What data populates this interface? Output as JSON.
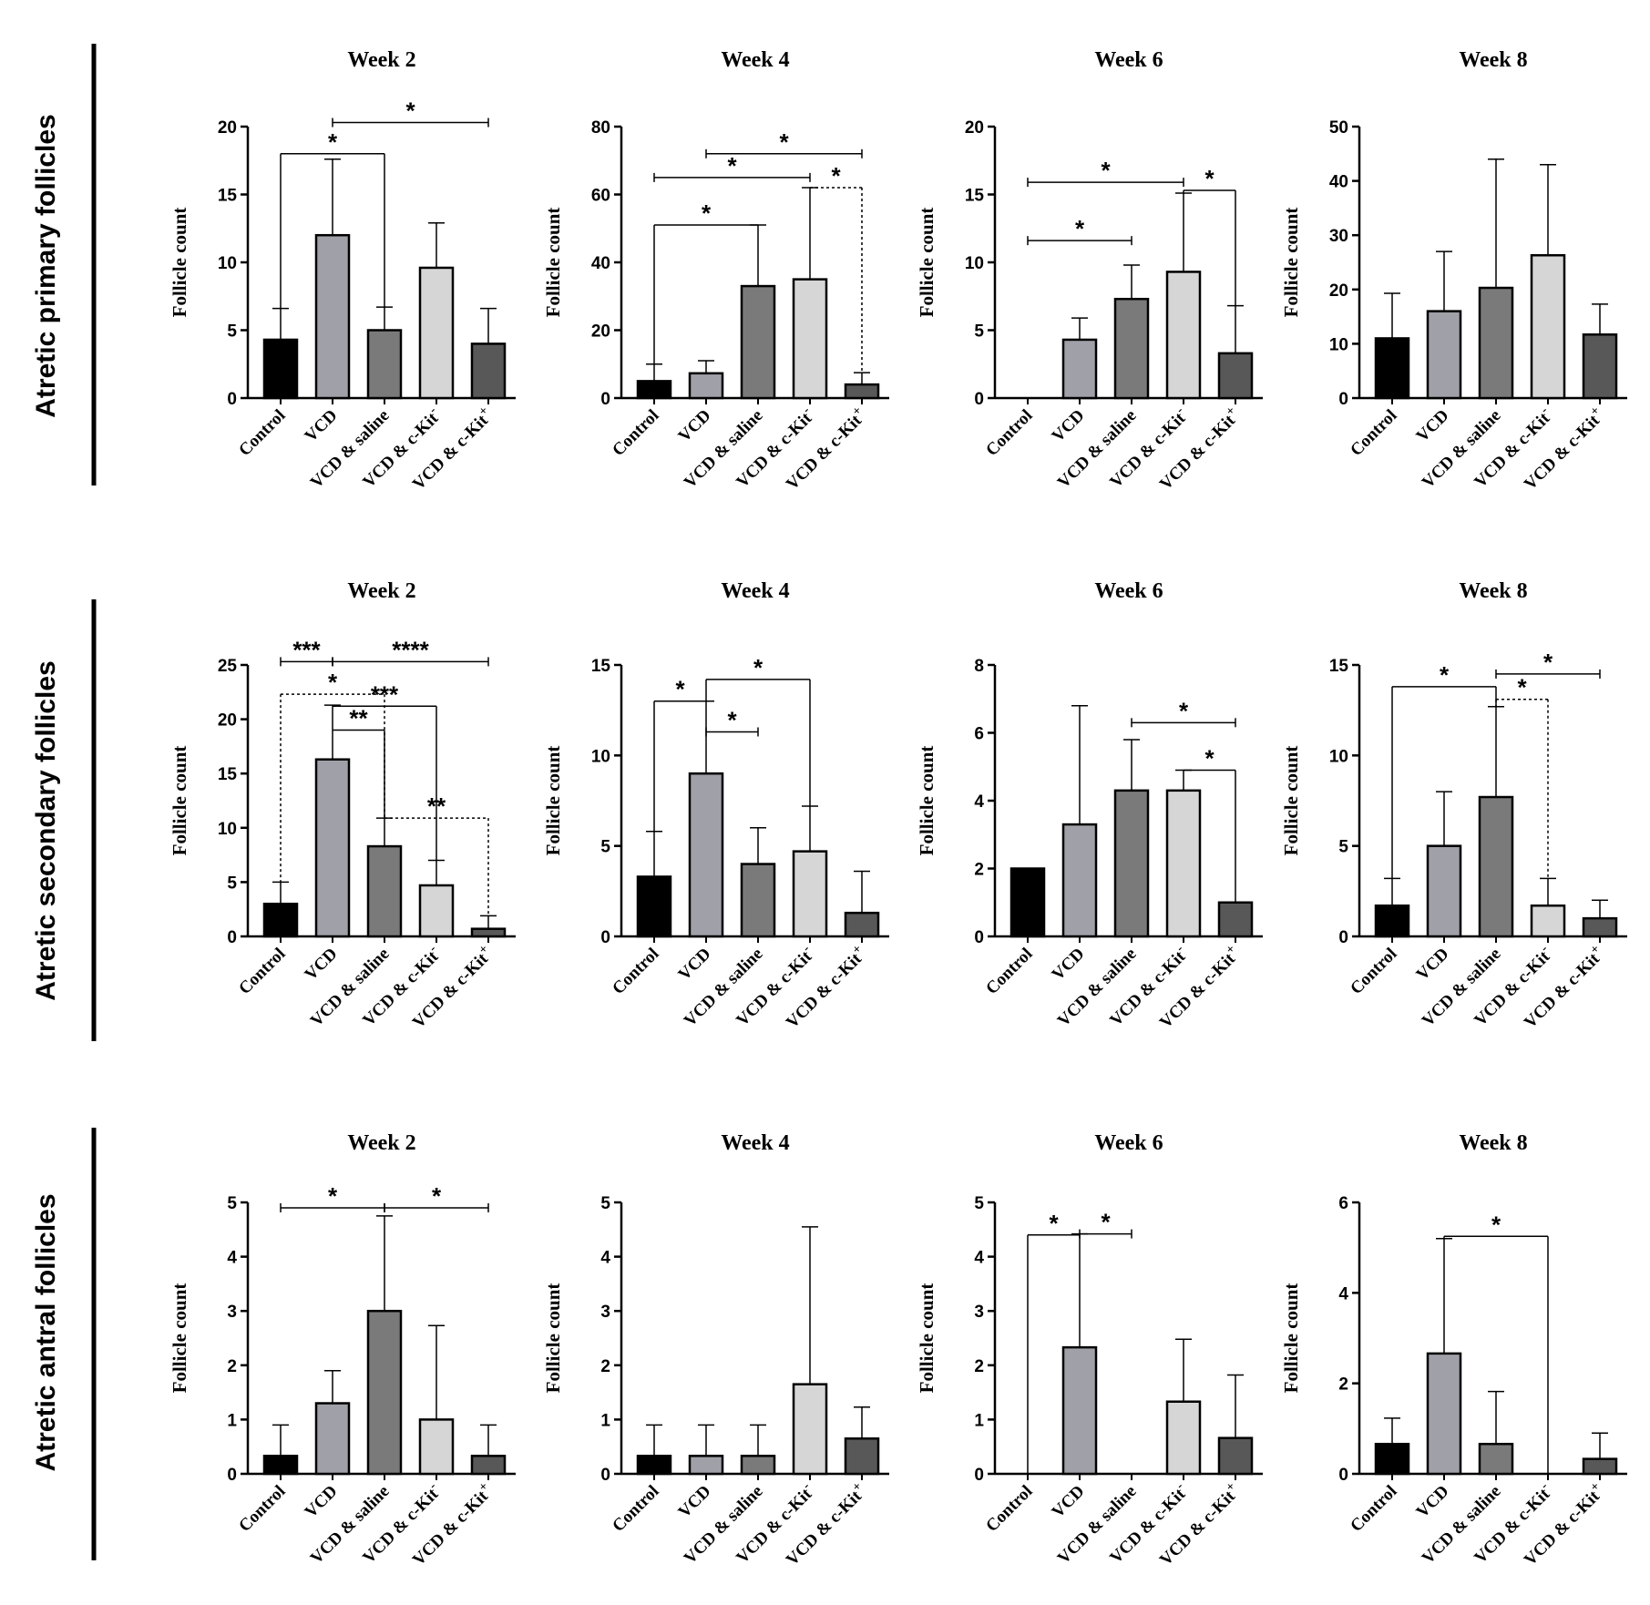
{
  "figure": {
    "row_labels": [
      "Atretic primary follicles",
      "Atretic secondary follicles",
      "Atretic antral follicles"
    ],
    "groups": [
      "Control",
      "VCD",
      "VCD & saline",
      "VCD & c-Kit",
      "VCD & c-Kit"
    ],
    "group_superscripts": [
      "",
      "",
      "",
      "-",
      "+"
    ],
    "y_label": "Follicle count"
  },
  "colors": {
    "bar_fills": [
      "#000000",
      "#a0a0a8",
      "#7a7a7a",
      "#d6d6d6",
      "#585858"
    ]
  },
  "chart_data": [
    {
      "id": "p1",
      "row": 0,
      "col": 0,
      "type": "bar",
      "title": "Week 2",
      "ylabel": "Follicle count",
      "ylim": [
        0,
        20
      ],
      "yticks": [
        0,
        5,
        10,
        15,
        20
      ],
      "categories": [
        "Control",
        "VCD",
        "VCD & saline",
        "VCD & c-Kit-",
        "VCD & c-Kit+"
      ],
      "values": [
        4.3,
        12,
        5,
        9.6,
        4
      ],
      "errors": [
        6.6,
        17.6,
        6.7,
        12.9,
        6.6
      ],
      "significance": [
        {
          "groups": [
            0,
            2
          ],
          "y": 18,
          "label": "*",
          "style": "bracket"
        },
        {
          "groups": [
            1,
            4
          ],
          "y": 20.3,
          "label": "*",
          "style": "line"
        }
      ]
    },
    {
      "id": "p2",
      "row": 0,
      "col": 1,
      "type": "bar",
      "title": "Week 4",
      "ylabel": "Follicle count",
      "ylim": [
        0,
        80
      ],
      "yticks": [
        0,
        20,
        40,
        60,
        80
      ],
      "categories": [
        "Control",
        "VCD",
        "VCD & saline",
        "VCD & c-Kit-",
        "VCD & c-Kit+"
      ],
      "values": [
        5,
        7.3,
        33,
        35,
        4
      ],
      "errors": [
        10,
        11,
        51,
        62,
        7.5
      ],
      "significance": [
        {
          "groups": [
            0,
            2
          ],
          "y": 51,
          "label": "*",
          "style": "bracket"
        },
        {
          "groups": [
            0,
            3
          ],
          "y": 65,
          "label": "*",
          "style": "line"
        },
        {
          "groups": [
            1,
            4
          ],
          "y": 72,
          "label": "*",
          "style": "line"
        },
        {
          "groups": [
            3,
            4
          ],
          "y": 62,
          "label": "*",
          "style": "dotted"
        }
      ]
    },
    {
      "id": "p3",
      "row": 0,
      "col": 2,
      "type": "bar",
      "title": "Week 6",
      "ylabel": "Follicle count",
      "ylim": [
        0,
        20
      ],
      "yticks": [
        0,
        5,
        10,
        15,
        20
      ],
      "categories": [
        "Control",
        "VCD",
        "VCD & saline",
        "VCD & c-Kit-",
        "VCD & c-Kit+"
      ],
      "values": [
        0,
        4.3,
        7.3,
        9.3,
        3.3
      ],
      "errors": [
        0,
        5.9,
        9.8,
        15.1,
        6.8
      ],
      "significance": [
        {
          "groups": [
            0,
            2
          ],
          "y": 11.6,
          "label": "*",
          "style": "line"
        },
        {
          "groups": [
            0,
            3
          ],
          "y": 15.9,
          "label": "*",
          "style": "line"
        },
        {
          "groups": [
            3,
            4
          ],
          "y": 15.3,
          "label": "*",
          "style": "bracket"
        }
      ]
    },
    {
      "id": "p4",
      "row": 0,
      "col": 3,
      "type": "bar",
      "title": "Week 8",
      "ylabel": "Follicle count",
      "ylim": [
        0,
        50
      ],
      "yticks": [
        0,
        10,
        20,
        30,
        40,
        50
      ],
      "categories": [
        "Control",
        "VCD",
        "VCD & saline",
        "VCD & c-Kit-",
        "VCD & c-Kit+"
      ],
      "values": [
        11,
        16,
        20.3,
        26.3,
        11.7
      ],
      "errors": [
        19.3,
        27,
        44,
        43,
        17.3
      ],
      "significance": []
    },
    {
      "id": "p5",
      "row": 1,
      "col": 0,
      "type": "bar",
      "title": "Week 2",
      "ylabel": "Follicle count",
      "ylim": [
        0,
        25
      ],
      "yticks": [
        0,
        5,
        10,
        15,
        20,
        25
      ],
      "categories": [
        "Control",
        "VCD",
        "VCD & saline",
        "VCD & c-Kit-",
        "VCD & c-Kit+"
      ],
      "values": [
        3,
        16.3,
        8.3,
        4.7,
        0.7
      ],
      "errors": [
        5,
        21.3,
        10.9,
        7,
        1.9
      ],
      "significance": [
        {
          "groups": [
            0,
            1
          ],
          "y": 25.3,
          "label": "***",
          "style": "line"
        },
        {
          "groups": [
            1,
            4
          ],
          "y": 25.3,
          "label": "****",
          "style": "line"
        },
        {
          "groups": [
            0,
            2
          ],
          "y": 22.3,
          "label": "*",
          "style": "dotted"
        },
        {
          "groups": [
            1,
            3
          ],
          "y": 21.2,
          "label": "***",
          "style": "bracket"
        },
        {
          "groups": [
            1,
            2
          ],
          "y": 19,
          "label": "**",
          "style": "bracket"
        },
        {
          "groups": [
            2,
            4
          ],
          "y": 10.9,
          "label": "**",
          "style": "dotted"
        }
      ]
    },
    {
      "id": "p6",
      "row": 1,
      "col": 1,
      "type": "bar",
      "title": "Week 4",
      "ylabel": "Follicle count",
      "ylim": [
        0,
        15
      ],
      "yticks": [
        0,
        5,
        10,
        15
      ],
      "categories": [
        "Control",
        "VCD",
        "VCD & saline",
        "VCD & c-Kit-",
        "VCD & c-Kit+"
      ],
      "values": [
        3.3,
        9,
        4,
        4.7,
        1.3
      ],
      "errors": [
        5.8,
        13,
        6,
        7.2,
        3.6
      ],
      "significance": [
        {
          "groups": [
            0,
            1
          ],
          "y": 13,
          "label": "*",
          "style": "bracket"
        },
        {
          "groups": [
            1,
            3
          ],
          "y": 14.2,
          "label": "*",
          "style": "bracket"
        },
        {
          "groups": [
            1,
            2
          ],
          "y": 11.3,
          "label": "*",
          "style": "line"
        }
      ]
    },
    {
      "id": "p7",
      "row": 1,
      "col": 2,
      "type": "bar",
      "title": "Week 6",
      "ylabel": "Follicle count",
      "ylim": [
        0,
        8
      ],
      "yticks": [
        0,
        2,
        4,
        6,
        8
      ],
      "categories": [
        "Control",
        "VCD",
        "VCD & saline",
        "VCD & c-Kit-",
        "VCD & c-Kit+"
      ],
      "values": [
        2,
        3.3,
        4.3,
        4.3,
        1
      ],
      "errors": [
        2,
        6.8,
        5.8,
        4.9,
        1
      ],
      "significance": [
        {
          "groups": [
            2,
            4
          ],
          "y": 6.3,
          "label": "*",
          "style": "line"
        },
        {
          "groups": [
            3,
            4
          ],
          "y": 4.9,
          "label": "*",
          "style": "bracket"
        }
      ]
    },
    {
      "id": "p8",
      "row": 1,
      "col": 3,
      "type": "bar",
      "title": "Week 8",
      "ylabel": "Follicle count",
      "ylim": [
        0,
        15
      ],
      "yticks": [
        0,
        5,
        10,
        15
      ],
      "categories": [
        "Control",
        "VCD",
        "VCD & saline",
        "VCD & c-Kit-",
        "VCD & c-Kit+"
      ],
      "values": [
        1.7,
        5,
        7.7,
        1.7,
        1
      ],
      "errors": [
        3.2,
        8,
        12.7,
        3.2,
        2
      ],
      "significance": [
        {
          "groups": [
            0,
            2
          ],
          "y": 13.8,
          "label": "*",
          "style": "bracket"
        },
        {
          "groups": [
            2,
            4
          ],
          "y": 14.5,
          "label": "*",
          "style": "line"
        },
        {
          "groups": [
            2,
            3
          ],
          "y": 13.1,
          "label": "*",
          "style": "dotted"
        }
      ]
    },
    {
      "id": "p9",
      "row": 2,
      "col": 0,
      "type": "bar",
      "title": "Week 2",
      "ylabel": "Follicle count",
      "ylim": [
        0,
        5
      ],
      "yticks": [
        0,
        1,
        2,
        3,
        4,
        5
      ],
      "categories": [
        "Control",
        "VCD",
        "VCD & saline",
        "VCD & c-Kit-",
        "VCD & c-Kit+"
      ],
      "values": [
        0.33,
        1.3,
        3,
        1,
        0.33
      ],
      "errors": [
        0.9,
        1.9,
        4.75,
        2.73,
        0.9
      ],
      "significance": [
        {
          "groups": [
            0,
            2
          ],
          "y": 4.9,
          "label": "*",
          "style": "line"
        },
        {
          "groups": [
            2,
            4
          ],
          "y": 4.9,
          "label": "*",
          "style": "line"
        }
      ]
    },
    {
      "id": "p10",
      "row": 2,
      "col": 1,
      "type": "bar",
      "title": "Week 4",
      "ylabel": "Follicle count",
      "ylim": [
        0,
        5
      ],
      "yticks": [
        0,
        1,
        2,
        3,
        4,
        5
      ],
      "categories": [
        "Control",
        "VCD",
        "VCD & saline",
        "VCD & c-Kit-",
        "VCD & c-Kit+"
      ],
      "values": [
        0.33,
        0.33,
        0.33,
        1.65,
        0.65
      ],
      "errors": [
        0.9,
        0.9,
        0.9,
        4.55,
        1.23
      ],
      "significance": []
    },
    {
      "id": "p11",
      "row": 2,
      "col": 2,
      "type": "bar",
      "title": "Week 6",
      "ylabel": "Follicle count",
      "ylim": [
        0,
        5
      ],
      "yticks": [
        0,
        1,
        2,
        3,
        4,
        5
      ],
      "categories": [
        "Control",
        "VCD",
        "VCD & saline",
        "VCD & c-Kit-",
        "VCD & c-Kit+"
      ],
      "values": [
        0,
        2.33,
        0,
        1.33,
        0.66
      ],
      "errors": [
        0,
        4.42,
        0,
        2.48,
        1.82
      ],
      "significance": [
        {
          "groups": [
            0,
            1
          ],
          "y": 4.4,
          "label": "*",
          "style": "bracket"
        },
        {
          "groups": [
            1,
            2
          ],
          "y": 4.42,
          "label": "*",
          "style": "line"
        }
      ]
    },
    {
      "id": "p12",
      "row": 2,
      "col": 3,
      "type": "bar",
      "title": "Week 8",
      "ylabel": "Follicle count",
      "ylim": [
        0,
        6
      ],
      "yticks": [
        0,
        2,
        4,
        6
      ],
      "categories": [
        "Control",
        "VCD",
        "VCD & saline",
        "VCD & c-Kit-",
        "VCD & c-Kit+"
      ],
      "values": [
        0.66,
        2.66,
        0.66,
        0,
        0.33
      ],
      "errors": [
        1.23,
        5.2,
        1.82,
        0,
        0.9
      ],
      "significance": [
        {
          "groups": [
            1,
            3
          ],
          "y": 5.25,
          "label": "*",
          "style": "bracket"
        }
      ]
    }
  ]
}
